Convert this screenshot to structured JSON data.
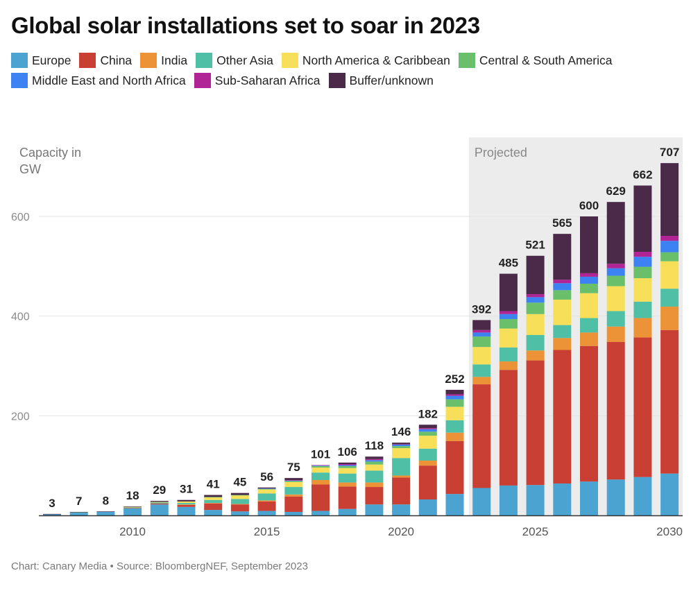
{
  "title": "Global solar installations set to soar in 2023",
  "footer": "Chart: Canary Media • Source: BloombergNEF, September 2023",
  "chart_data": {
    "type": "bar",
    "stacked": true,
    "ylabel_line1": "Capacity in",
    "ylabel_line2": "GW",
    "ylim": [
      0,
      700
    ],
    "yticks": [
      200,
      400,
      600
    ],
    "xticks": [
      "2010",
      "2015",
      "2020",
      "2025",
      "2030"
    ],
    "grid": true,
    "legend_position": "top",
    "projected_label": "Projected",
    "projected_from": "2023",
    "categories": [
      "2007",
      "2008",
      "2009",
      "2010",
      "2011",
      "2012",
      "2013",
      "2014",
      "2015",
      "2016",
      "2017",
      "2018",
      "2019",
      "2020",
      "2021",
      "2022",
      "2023",
      "2024",
      "2025",
      "2026",
      "2027",
      "2028",
      "2029",
      "2030"
    ],
    "totals": [
      "3",
      "7",
      "8",
      "18",
      "29",
      "31",
      "41",
      "45",
      "56",
      "75",
      "101",
      "106",
      "118",
      "146",
      "182",
      "252",
      "392",
      "485",
      "521",
      "565",
      "600",
      "629",
      "662",
      "707"
    ],
    "series": [
      {
        "name": "Europe",
        "color": "#4aa3d0",
        "values": [
          2,
          5,
          7,
          14,
          22,
          17,
          11,
          8,
          9,
          7,
          9,
          13,
          22,
          22,
          32,
          43,
          55,
          60,
          61,
          64,
          68,
          72,
          77,
          84
        ]
      },
      {
        "name": "China",
        "color": "#c93f34",
        "values": [
          0,
          0,
          0,
          1,
          2,
          4,
          13,
          14,
          19,
          31,
          53,
          45,
          35,
          54,
          68,
          106,
          208,
          232,
          250,
          268,
          272,
          276,
          280,
          288
        ]
      },
      {
        "name": "India",
        "color": "#ec9237",
        "values": [
          0,
          0,
          0,
          0,
          0,
          1,
          1,
          1,
          2,
          4,
          9,
          8,
          9,
          4,
          10,
          17,
          15,
          17,
          20,
          24,
          27,
          31,
          39,
          47
        ]
      },
      {
        "name": "Other Asia",
        "color": "#4fbfa5",
        "values": [
          0,
          1,
          0,
          1,
          2,
          3,
          6,
          10,
          14,
          15,
          15,
          18,
          24,
          35,
          24,
          25,
          25,
          28,
          31,
          26,
          29,
          31,
          33,
          36
        ]
      },
      {
        "name": "North America & Caribbean",
        "color": "#f7df5a",
        "values": [
          0,
          0,
          0,
          1,
          1,
          3,
          5,
          7,
          8,
          10,
          10,
          11,
          12,
          20,
          26,
          27,
          35,
          38,
          42,
          51,
          50,
          50,
          47,
          55
        ]
      },
      {
        "name": "Central & South America",
        "color": "#6abf6a",
        "values": [
          0,
          0,
          0,
          0,
          0,
          0,
          1,
          1,
          1,
          2,
          3,
          4,
          6,
          4,
          8,
          15,
          21,
          19,
          23,
          19,
          19,
          21,
          23,
          18
        ]
      },
      {
        "name": "Middle East and North Africa",
        "color": "#3c82f2",
        "values": [
          0,
          0,
          0,
          0,
          0,
          0,
          0,
          0,
          1,
          1,
          1,
          2,
          3,
          3,
          5,
          7,
          8,
          10,
          11,
          14,
          14,
          15,
          20,
          23
        ]
      },
      {
        "name": "Sub-Saharan Africa",
        "color": "#b02495",
        "values": [
          0,
          0,
          0,
          0,
          0,
          0,
          0,
          0,
          0,
          1,
          1,
          2,
          2,
          1,
          2,
          3,
          5,
          6,
          6,
          7,
          7,
          9,
          10,
          10
        ]
      },
      {
        "name": "Buffer/unknown",
        "color": "#4a2a48",
        "values": [
          1,
          1,
          1,
          1,
          2,
          3,
          4,
          4,
          2,
          4,
          0,
          3,
          5,
          3,
          7,
          9,
          20,
          75,
          77,
          92,
          114,
          124,
          133,
          146
        ]
      }
    ]
  }
}
